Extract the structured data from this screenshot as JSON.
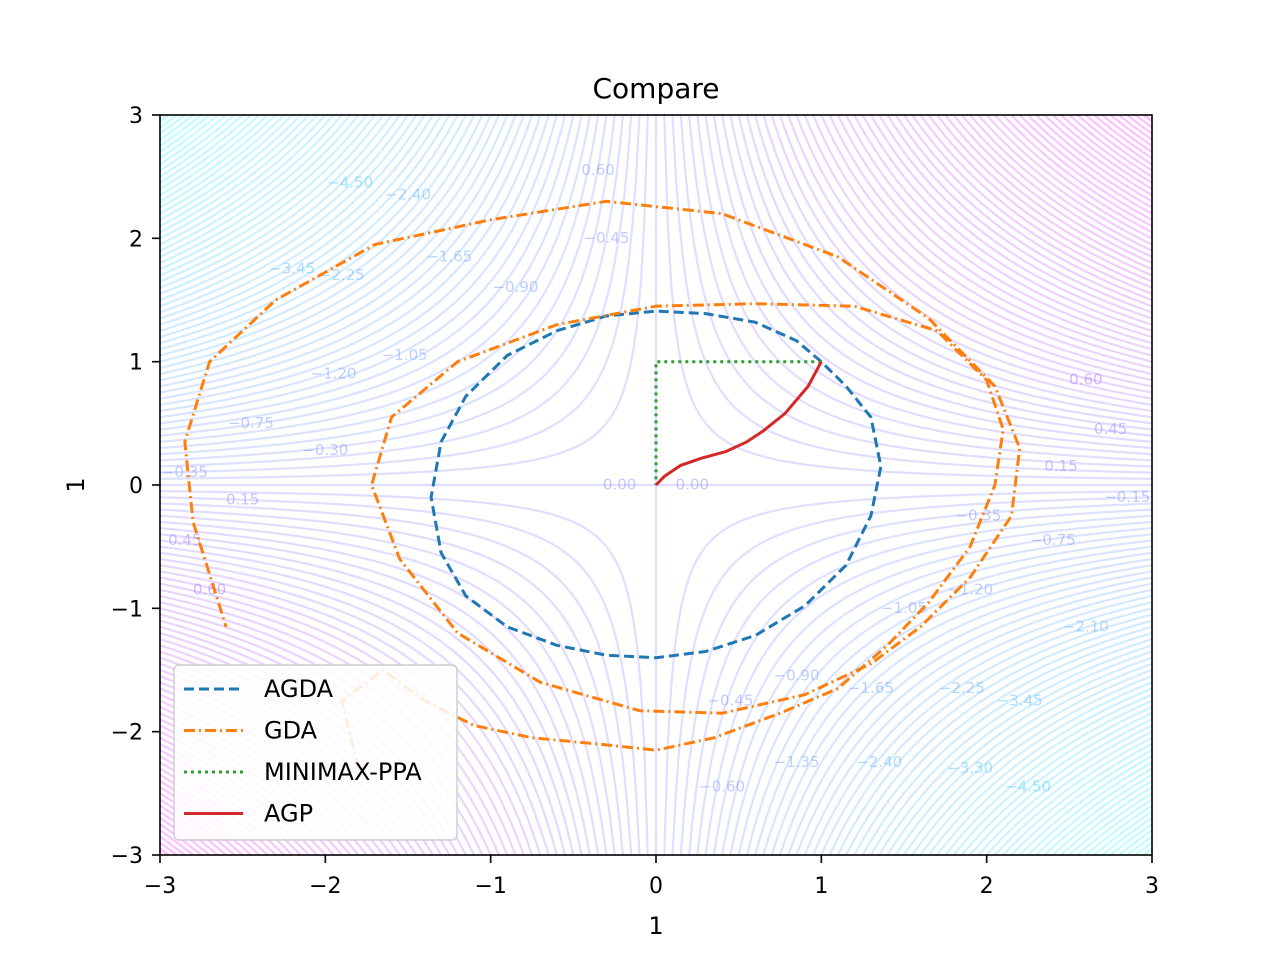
{
  "chart_data": {
    "type": "line",
    "title": "Compare",
    "xlabel": "1",
    "ylabel": "1",
    "xlim": [
      -3,
      3
    ],
    "ylim": [
      -3,
      3
    ],
    "xticks": [
      "−3",
      "−2",
      "−1",
      "0",
      "1",
      "2",
      "3"
    ],
    "yticks": [
      "−3",
      "−2",
      "−1",
      "0",
      "1",
      "2",
      "3"
    ],
    "grid": false,
    "legend_position": "lower-left",
    "background": {
      "type": "contour",
      "function": "x*y",
      "colormap": "cool",
      "alpha": 0.25,
      "level_step": 0.15,
      "visible_labels": [
        {
          "text": "0.00",
          "x": -0.22,
          "y": 0.0
        },
        {
          "text": "0.00",
          "x": 0.22,
          "y": 0.0
        },
        {
          "text": "0.15",
          "x": -2.5,
          "y": -0.12
        },
        {
          "text": "0.45",
          "x": -2.85,
          "y": -0.45
        },
        {
          "text": "0.60",
          "x": -2.7,
          "y": -0.85
        },
        {
          "text": "−0.35",
          "x": -2.85,
          "y": 0.1
        },
        {
          "text": "−0.75",
          "x": -2.45,
          "y": 0.5
        },
        {
          "text": "−0.30",
          "x": -2.0,
          "y": 0.28
        },
        {
          "text": "−1.20",
          "x": -1.95,
          "y": 0.9
        },
        {
          "text": "−1.05",
          "x": -1.52,
          "y": 1.05
        },
        {
          "text": "−2.25",
          "x": -1.9,
          "y": 1.7
        },
        {
          "text": "−1.65",
          "x": -1.25,
          "y": 1.85
        },
        {
          "text": "−2.40",
          "x": -1.5,
          "y": 2.35
        },
        {
          "text": "−0.90",
          "x": -0.85,
          "y": 1.6
        },
        {
          "text": "−0.45",
          "x": -0.3,
          "y": 2.0
        },
        {
          "text": "0.60",
          "x": -0.35,
          "y": 2.55
        },
        {
          "text": "0.15",
          "x": 2.45,
          "y": 0.15
        },
        {
          "text": "0.45",
          "x": 2.75,
          "y": 0.45
        },
        {
          "text": "0.60",
          "x": 2.6,
          "y": 0.85
        },
        {
          "text": "−0.15",
          "x": 2.85,
          "y": -0.1
        },
        {
          "text": "−0.35",
          "x": 1.95,
          "y": -0.25
        },
        {
          "text": "−0.75",
          "x": 2.4,
          "y": -0.45
        },
        {
          "text": "−1.20",
          "x": 1.9,
          "y": -0.85
        },
        {
          "text": "−1.05",
          "x": 1.5,
          "y": -1.0
        },
        {
          "text": "−2.10",
          "x": 2.6,
          "y": -1.15
        },
        {
          "text": "−2.25",
          "x": 1.85,
          "y": -1.65
        },
        {
          "text": "−1.65",
          "x": 1.3,
          "y": -1.65
        },
        {
          "text": "−0.90",
          "x": 0.85,
          "y": -1.55
        },
        {
          "text": "−0.45",
          "x": 0.45,
          "y": -1.75
        },
        {
          "text": "−0.60",
          "x": 0.4,
          "y": -2.45
        },
        {
          "text": "−1.35",
          "x": 0.85,
          "y": -2.25
        },
        {
          "text": "−2.40",
          "x": 1.35,
          "y": -2.25
        },
        {
          "text": "−3.30",
          "x": 1.9,
          "y": -2.3
        },
        {
          "text": "−3.45",
          "x": 2.2,
          "y": -1.75
        },
        {
          "text": "−4.50",
          "x": 2.25,
          "y": -2.45
        },
        {
          "text": "−4.50",
          "x": -1.85,
          "y": 2.45
        },
        {
          "text": "−3.45",
          "x": -2.2,
          "y": 1.75
        }
      ]
    },
    "series": [
      {
        "name": "AGDA",
        "color": "#1f77b4",
        "style": "dashed",
        "x": [
          1.0,
          0.85,
          0.6,
          0.3,
          0.0,
          -0.3,
          -0.6,
          -0.9,
          -1.15,
          -1.3,
          -1.36,
          -1.3,
          -1.15,
          -0.9,
          -0.6,
          -0.3,
          0.0,
          0.3,
          0.6,
          0.9,
          1.15,
          1.3,
          1.36,
          1.3,
          1.15,
          1.0
        ],
        "y": [
          1.0,
          1.17,
          1.32,
          1.39,
          1.41,
          1.37,
          1.25,
          1.05,
          0.72,
          0.35,
          -0.1,
          -0.55,
          -0.9,
          -1.15,
          -1.3,
          -1.38,
          -1.4,
          -1.35,
          -1.22,
          -0.98,
          -0.65,
          -0.25,
          0.15,
          0.55,
          0.8,
          1.0
        ]
      },
      {
        "name": "GDA",
        "color": "#ff7f0e",
        "style": "dashdot",
        "x": [
          -1.8,
          -1.9,
          -1.65,
          -1.4,
          -1.1,
          -0.75,
          -0.35,
          0.0,
          0.35,
          0.75,
          1.1,
          1.4,
          1.65,
          1.9,
          2.05,
          2.1,
          2.0,
          1.7,
          1.2,
          0.6,
          0.0,
          -0.6,
          -1.2,
          -1.6,
          -1.72,
          -1.55,
          -1.2,
          -0.7,
          -0.1,
          0.4,
          0.9,
          1.3,
          1.6,
          1.9,
          2.15,
          2.2,
          2.05,
          1.65,
          1.1,
          0.4,
          -0.3,
          -1.0,
          -1.7,
          -2.3,
          -2.7,
          -2.85,
          -2.8,
          -2.6
        ],
        "y": [
          -2.3,
          -1.75,
          -1.5,
          -1.75,
          -1.95,
          -2.05,
          -2.1,
          -2.15,
          -2.05,
          -1.85,
          -1.65,
          -1.3,
          -0.95,
          -0.5,
          0.0,
          0.45,
          0.85,
          1.25,
          1.45,
          1.47,
          1.45,
          1.3,
          1.0,
          0.55,
          0.0,
          -0.6,
          -1.2,
          -1.6,
          -1.83,
          -1.85,
          -1.7,
          -1.45,
          -1.15,
          -0.75,
          -0.25,
          0.3,
          0.8,
          1.35,
          1.85,
          2.2,
          2.3,
          2.15,
          1.95,
          1.5,
          1.0,
          0.35,
          -0.3,
          -1.15
        ]
      },
      {
        "name": "MINIMAX-PPA",
        "color": "#2ca02c",
        "style": "dotted",
        "x": [
          1.0,
          0.6,
          0.2,
          0.0,
          0.0,
          0.0,
          0.0
        ],
        "y": [
          1.0,
          1.0,
          1.0,
          1.0,
          0.6,
          0.2,
          0.0
        ]
      },
      {
        "name": "AGP",
        "color": "#d62728",
        "style": "solid",
        "x": [
          1.0,
          0.92,
          0.78,
          0.65,
          0.55,
          0.42,
          0.28,
          0.15,
          0.05,
          0.0
        ],
        "y": [
          1.0,
          0.8,
          0.58,
          0.44,
          0.35,
          0.27,
          0.22,
          0.16,
          0.07,
          0.0
        ]
      }
    ]
  }
}
